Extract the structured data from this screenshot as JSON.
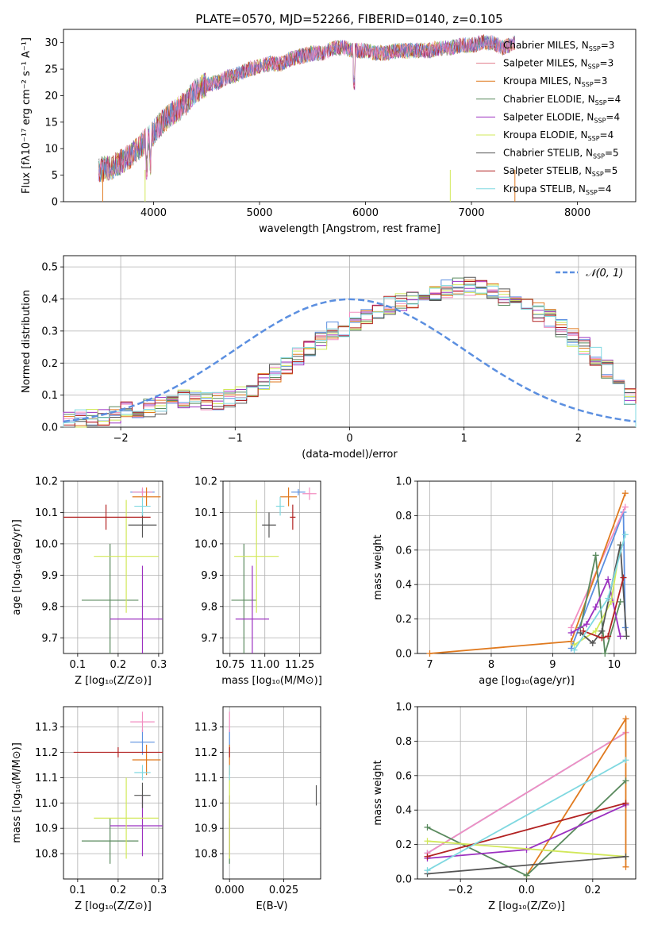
{
  "figure": {
    "title": "PLATE=0570, MJD=52266, FIBERID=0140, z=0.105"
  },
  "series_colors": [
    "#5b8fe0",
    "#f28ec1",
    "#e07a1f",
    "#5a8a5e",
    "#9b30c0",
    "#d2e85a",
    "#555555",
    "#b22222",
    "#7fd8e0"
  ],
  "chart_data": [
    {
      "id": "spectrum",
      "type": "line",
      "title": "PLATE=0570, MJD=52266, FIBERID=0140, z=0.105",
      "xlabel": "wavelength [Angstrom, rest frame]",
      "ylabel": "Flux [fλ10⁻¹⁷ erg cm⁻² s⁻¹ A⁻¹]",
      "xlim": [
        3150,
        8550
      ],
      "ylim": [
        0,
        32.5
      ],
      "xticks": [
        4000,
        5000,
        6000,
        7000,
        8000
      ],
      "yticks": [
        0,
        5,
        10,
        15,
        20,
        25,
        30
      ],
      "legend_position": "right",
      "legend": [
        {
          "main": "Chabrier MILES, N",
          "sub": "SSP",
          "tail": "=3"
        },
        {
          "main": "Salpeter MILES, N",
          "sub": "SSP",
          "tail": "=3"
        },
        {
          "main": "Kroupa MILES, N",
          "sub": "SSP",
          "tail": "=3"
        },
        {
          "main": "Chabrier ELODIE, N",
          "sub": "SSP",
          "tail": "=4"
        },
        {
          "main": "Salpeter ELODIE, N",
          "sub": "SSP",
          "tail": "=4"
        },
        {
          "main": "Kroupa ELODIE, N",
          "sub": "SSP",
          "tail": "=4"
        },
        {
          "main": "Chabrier STELIB, N",
          "sub": "SSP",
          "tail": "=5"
        },
        {
          "main": "Salpeter STELIB, N",
          "sub": "SSP",
          "tail": "=5"
        },
        {
          "main": "Kroupa STELIB, N",
          "sub": "SSP",
          "tail": "=4"
        }
      ],
      "legend_colors": [
        "#9aa0d0",
        "#e07a8a",
        "#e07a1f",
        "#5a8a5e",
        "#9b30c0",
        "#d2e85a",
        "#555555",
        "#b22222",
        "#7fd8e0"
      ],
      "data_x": [
        3500,
        3600,
        3700,
        3800,
        3900,
        4000,
        4100,
        4200,
        4300,
        4400,
        4500,
        4600,
        4700,
        4800,
        4900,
        5000,
        5100,
        5200,
        5300,
        5400,
        5500,
        5600,
        5700,
        5800,
        5900,
        6000,
        6100,
        6200,
        6300,
        6400,
        6500,
        6600,
        6700,
        6800,
        6900,
        7000,
        7100,
        7200,
        7300,
        7400
      ],
      "data_y": [
        6,
        6.5,
        7.5,
        9,
        11,
        13,
        15.5,
        17,
        18.5,
        21,
        22,
        22.5,
        23.5,
        24,
        25,
        25.5,
        26,
        26,
        27,
        27.5,
        28,
        28,
        29,
        29,
        28.5,
        28.5,
        28,
        28,
        28.5,
        28.5,
        28.5,
        28.5,
        29,
        29,
        29.5,
        29.5,
        30,
        30,
        29,
        30
      ]
    },
    {
      "id": "residuals",
      "type": "bar",
      "xlabel": "(data-model)/error",
      "ylabel": "Normed distribution",
      "xlim": [
        -2.5,
        2.5
      ],
      "ylim": [
        0,
        0.535
      ],
      "xticks": [
        -2,
        -1,
        0,
        1,
        2
      ],
      "yticks": [
        0.0,
        0.1,
        0.2,
        0.3,
        0.4,
        0.5
      ],
      "legend_position": "top-right",
      "gaussian_label": "𝒩(0, 1)",
      "gaussian_color": "#5b8fe0",
      "bin_edges_start": -2.5,
      "bin_width": 0.1,
      "hist_values": [
        0.02,
        0.025,
        0.03,
        0.035,
        0.04,
        0.05,
        0.055,
        0.06,
        0.07,
        0.08,
        0.09,
        0.09,
        0.08,
        0.08,
        0.09,
        0.1,
        0.12,
        0.14,
        0.17,
        0.19,
        0.22,
        0.25,
        0.27,
        0.3,
        0.31,
        0.33,
        0.34,
        0.36,
        0.38,
        0.39,
        0.4,
        0.41,
        0.42,
        0.43,
        0.44,
        0.44,
        0.43,
        0.42,
        0.41,
        0.39,
        0.38,
        0.36,
        0.34,
        0.31,
        0.28,
        0.25,
        0.22,
        0.18,
        0.14,
        0.1
      ]
    },
    {
      "id": "age-vs-Z",
      "type": "scatter",
      "xlabel": "Z [log₁₀(Z/Z⊙)]",
      "ylabel": "age  [log₁₀(age/yr)]",
      "xlim": [
        0.065,
        0.31
      ],
      "ylim": [
        9.65,
        10.2
      ],
      "xticks": [
        0.1,
        0.2,
        0.3
      ],
      "yticks": [
        9.7,
        9.8,
        9.9,
        10.0,
        10.1,
        10.2
      ],
      "points": [
        {
          "x": 0.26,
          "y": 10.165,
          "xerr": 0.03,
          "yerr": 0.01,
          "c": 0
        },
        {
          "x": 0.26,
          "y": 10.165,
          "xerr": 0.025,
          "yerr": 0.015,
          "c": 1
        },
        {
          "x": 0.27,
          "y": 10.15,
          "xerr": 0.035,
          "yerr": 0.03,
          "c": 2
        },
        {
          "x": 0.18,
          "y": 9.82,
          "xerr": 0.07,
          "yerr": 0.18,
          "c": 3
        },
        {
          "x": 0.26,
          "y": 9.76,
          "xerr": 0.08,
          "yerr": 0.17,
          "c": 4
        },
        {
          "x": 0.22,
          "y": 9.96,
          "xerr": 0.08,
          "yerr": 0.18,
          "c": 5
        },
        {
          "x": 0.26,
          "y": 10.06,
          "xerr": 0.035,
          "yerr": 0.04,
          "c": 6
        },
        {
          "x": 0.17,
          "y": 10.085,
          "xerr": 0.11,
          "yerr": 0.04,
          "c": 7
        },
        {
          "x": 0.26,
          "y": 10.12,
          "xerr": 0.02,
          "yerr": 0.03,
          "c": 8
        }
      ]
    },
    {
      "id": "age-vs-mass",
      "type": "scatter",
      "xlabel": "mass [log₁₀(M/M⊙)]",
      "ylabel": "",
      "xlim": [
        10.7,
        11.4
      ],
      "ylim": [
        9.65,
        10.2
      ],
      "xticks": [
        10.75,
        11.0,
        11.25
      ],
      "yticks": [
        9.7,
        9.8,
        9.9,
        10.0,
        10.1,
        10.2
      ],
      "points": [
        {
          "x": 11.24,
          "y": 10.165,
          "xerr": 0.05,
          "yerr": 0.01,
          "c": 0
        },
        {
          "x": 11.32,
          "y": 10.16,
          "xerr": 0.05,
          "yerr": 0.02,
          "c": 1
        },
        {
          "x": 11.17,
          "y": 10.15,
          "xerr": 0.06,
          "yerr": 0.03,
          "c": 2
        },
        {
          "x": 10.85,
          "y": 9.82,
          "xerr": 0.09,
          "yerr": 0.18,
          "c": 3
        },
        {
          "x": 10.91,
          "y": 9.76,
          "xerr": 0.12,
          "yerr": 0.17,
          "c": 4
        },
        {
          "x": 10.94,
          "y": 9.96,
          "xerr": 0.16,
          "yerr": 0.18,
          "c": 5
        },
        {
          "x": 11.03,
          "y": 10.06,
          "xerr": 0.05,
          "yerr": 0.04,
          "c": 6
        },
        {
          "x": 11.2,
          "y": 10.085,
          "xerr": 0.02,
          "yerr": 0.04,
          "c": 7
        },
        {
          "x": 11.11,
          "y": 10.12,
          "xerr": 0.03,
          "yerr": 0.03,
          "c": 8
        }
      ]
    },
    {
      "id": "weight-vs-age",
      "type": "line",
      "xlabel": "age  [log₁₀(age/yr)]",
      "ylabel": "mass weight",
      "xlim": [
        6.8,
        10.35
      ],
      "ylim": [
        0,
        1.0
      ],
      "xticks": [
        7,
        8,
        9,
        10
      ],
      "yticks": [
        0.0,
        0.2,
        0.4,
        0.6,
        0.8,
        1.0
      ],
      "series": [
        {
          "c": 0,
          "x": [
            9.3,
            10.15,
            10.18
          ],
          "y": [
            0.03,
            0.82,
            0.15
          ]
        },
        {
          "c": 1,
          "x": [
            9.3,
            10.18
          ],
          "y": [
            0.15,
            0.85
          ]
        },
        {
          "c": 2,
          "x": [
            7.0,
            9.3,
            10.18
          ],
          "y": [
            0.0,
            0.07,
            0.93
          ]
        },
        {
          "c": 3,
          "x": [
            9.45,
            9.7,
            9.85,
            10.1
          ],
          "y": [
            0.15,
            0.57,
            0.0,
            0.3
          ]
        },
        {
          "c": 4,
          "x": [
            9.3,
            9.55,
            9.7,
            9.9,
            10.1
          ],
          "y": [
            0.12,
            0.17,
            0.27,
            0.43,
            0.1
          ]
        },
        {
          "c": 5,
          "x": [
            9.35,
            9.7,
            9.95,
            10.1
          ],
          "y": [
            0.05,
            0.13,
            0.3,
            0.63
          ]
        },
        {
          "c": 6,
          "x": [
            9.45,
            9.65,
            9.8,
            10.1,
            10.2
          ],
          "y": [
            0.12,
            0.06,
            0.13,
            0.63,
            0.1
          ]
        },
        {
          "c": 7,
          "x": [
            9.5,
            9.8,
            9.9,
            10.15
          ],
          "y": [
            0.13,
            0.09,
            0.1,
            0.44
          ]
        },
        {
          "c": 8,
          "x": [
            9.35,
            9.9,
            10.18
          ],
          "y": [
            0.02,
            0.32,
            0.69
          ]
        }
      ]
    },
    {
      "id": "mass-vs-Z",
      "type": "scatter",
      "xlabel": "Z [log₁₀(Z/Z⊙)]",
      "ylabel": "mass [log₁₀(M/M⊙)]",
      "xlim": [
        0.065,
        0.31
      ],
      "ylim": [
        10.7,
        11.38
      ],
      "xticks": [
        0.1,
        0.2,
        0.3
      ],
      "yticks": [
        10.8,
        10.9,
        11.0,
        11.1,
        11.2,
        11.3
      ],
      "points": [
        {
          "x": 0.26,
          "y": 11.24,
          "xerr": 0.03,
          "yerr": 0.05,
          "c": 0
        },
        {
          "x": 0.26,
          "y": 11.32,
          "xerr": 0.03,
          "yerr": 0.04,
          "c": 1
        },
        {
          "x": 0.27,
          "y": 11.17,
          "xerr": 0.035,
          "yerr": 0.06,
          "c": 2
        },
        {
          "x": 0.18,
          "y": 10.85,
          "xerr": 0.07,
          "yerr": 0.09,
          "c": 3
        },
        {
          "x": 0.26,
          "y": 10.91,
          "xerr": 0.08,
          "yerr": 0.12,
          "c": 4
        },
        {
          "x": 0.22,
          "y": 10.94,
          "xerr": 0.08,
          "yerr": 0.16,
          "c": 5
        },
        {
          "x": 0.26,
          "y": 11.03,
          "xerr": 0.02,
          "yerr": 0.05,
          "c": 6
        },
        {
          "x": 0.2,
          "y": 11.2,
          "xerr": 0.11,
          "yerr": 0.02,
          "c": 7
        },
        {
          "x": 0.26,
          "y": 11.12,
          "xerr": 0.02,
          "yerr": 0.03,
          "c": 8
        }
      ]
    },
    {
      "id": "mass-vs-EBV",
      "type": "scatter",
      "xlabel": "E(B-V)",
      "ylabel": "",
      "xlim": [
        -0.003,
        0.042
      ],
      "ylim": [
        10.7,
        11.38
      ],
      "xticks": [
        0.0,
        0.025
      ],
      "xtick_labels": [
        "0.000",
        "0.025"
      ],
      "yticks": [
        10.8,
        10.9,
        11.0,
        11.1,
        11.2,
        11.3
      ],
      "points": [
        {
          "x": 0.0,
          "y": 11.24,
          "xerr": 0.0,
          "yerr": 0.05,
          "c": 0
        },
        {
          "x": 0.0,
          "y": 11.32,
          "xerr": 0.0,
          "yerr": 0.04,
          "c": 1
        },
        {
          "x": 0.0,
          "y": 11.17,
          "xerr": 0.0,
          "yerr": 0.06,
          "c": 2
        },
        {
          "x": 0.0,
          "y": 10.85,
          "xerr": 0.0,
          "yerr": 0.09,
          "c": 3
        },
        {
          "x": 0.0,
          "y": 10.91,
          "xerr": 0.0,
          "yerr": 0.12,
          "c": 4
        },
        {
          "x": 0.0,
          "y": 10.94,
          "xerr": 0.0,
          "yerr": 0.16,
          "c": 5
        },
        {
          "x": 0.04,
          "y": 11.03,
          "xerr": 0.0,
          "yerr": 0.04,
          "c": 6
        },
        {
          "x": 0.0,
          "y": 11.2,
          "xerr": 0.0,
          "yerr": 0.02,
          "c": 7
        },
        {
          "x": 0.0,
          "y": 11.12,
          "xerr": 0.0,
          "yerr": 0.03,
          "c": 8
        }
      ]
    },
    {
      "id": "weight-vs-Z",
      "type": "line",
      "xlabel": "Z [log₁₀(Z/Z⊙)]",
      "ylabel": "mass weight",
      "xlim": [
        -0.33,
        0.33
      ],
      "ylim": [
        0,
        1.0
      ],
      "xticks": [
        -0.2,
        0.0,
        0.2
      ],
      "xtick_labels": [
        "−0.2",
        "0.0",
        "0.2"
      ],
      "yticks": [
        0.0,
        0.2,
        0.4,
        0.6,
        0.8,
        1.0
      ],
      "series": [
        {
          "c": 0,
          "x": [
            -0.3,
            0.3
          ],
          "y": [
            0.15,
            0.85
          ]
        },
        {
          "c": 1,
          "x": [
            -0.3,
            0.3
          ],
          "y": [
            0.15,
            0.85
          ]
        },
        {
          "c": 2,
          "x": [
            0.0,
            0.3,
            0.3
          ],
          "y": [
            0.02,
            0.93,
            0.07
          ]
        },
        {
          "c": 3,
          "x": [
            -0.3,
            0.0,
            0.3
          ],
          "y": [
            0.3,
            0.02,
            0.57
          ]
        },
        {
          "c": 4,
          "x": [
            -0.3,
            0.0,
            0.3
          ],
          "y": [
            0.12,
            0.17,
            0.43
          ]
        },
        {
          "c": 5,
          "x": [
            -0.3,
            0.3
          ],
          "y": [
            0.22,
            0.13
          ]
        },
        {
          "c": 6,
          "x": [
            -0.3,
            0.3
          ],
          "y": [
            0.03,
            0.13
          ]
        },
        {
          "c": 7,
          "x": [
            -0.3,
            0.3
          ],
          "y": [
            0.13,
            0.44
          ]
        },
        {
          "c": 8,
          "x": [
            -0.3,
            0.3
          ],
          "y": [
            0.05,
            0.69
          ]
        }
      ]
    }
  ]
}
